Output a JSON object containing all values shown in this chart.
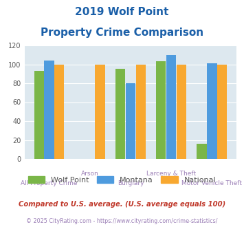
{
  "title_line1": "2019 Wolf Point",
  "title_line2": "Property Crime Comparison",
  "categories": [
    "All Property Crime",
    "Arson",
    "Burglary",
    "Larceny & Theft",
    "Motor Vehicle Theft"
  ],
  "cat_labels_top": [
    "",
    "Arson",
    "",
    "Larceny & Theft",
    ""
  ],
  "cat_labels_bot": [
    "All Property Crime",
    "",
    "Burglary",
    "",
    "Motor Vehicle Theft"
  ],
  "wolf_point": [
    93,
    0,
    95,
    103,
    16
  ],
  "montana": [
    104,
    0,
    80,
    110,
    101
  ],
  "national": [
    100,
    100,
    100,
    100,
    100
  ],
  "color_wolf": "#7ab648",
  "color_montana": "#4e9bde",
  "color_national": "#f8a830",
  "ylim": [
    0,
    120
  ],
  "yticks": [
    0,
    20,
    40,
    60,
    80,
    100,
    120
  ],
  "bg_color": "#dde8ef",
  "title_color": "#1a5fa8",
  "label_color": "#9b7fb6",
  "footnote1": "Compared to U.S. average. (U.S. average equals 100)",
  "footnote2": "© 2025 CityRating.com - https://www.cityrating.com/crime-statistics/",
  "footnote1_color": "#c0392b",
  "footnote2_color": "#9b7fb6",
  "legend_color": "#555555"
}
